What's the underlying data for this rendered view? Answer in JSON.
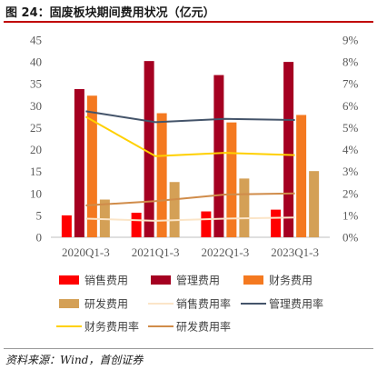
{
  "title": "图 24：固废板块期间费用状况（亿元）",
  "source": "资料来源：Wind，首创证券",
  "chart_data": {
    "type": "bar",
    "categories": [
      "2020Q1-3",
      "2021Q1-3",
      "2022Q1-3",
      "2023Q1-3"
    ],
    "series": [
      {
        "name": "销售费用",
        "kind": "bar",
        "axis": "left",
        "color": "#ff0000",
        "values": [
          5.0,
          5.6,
          5.9,
          6.3
        ]
      },
      {
        "name": "管理费用",
        "kind": "bar",
        "axis": "left",
        "color": "#a50021",
        "values": [
          33.8,
          40.2,
          37.0,
          40.0
        ]
      },
      {
        "name": "财务费用",
        "kind": "bar",
        "axis": "left",
        "color": "#f47920",
        "values": [
          32.3,
          28.3,
          26.2,
          27.9
        ]
      },
      {
        "name": "研发费用",
        "kind": "bar",
        "axis": "left",
        "color": "#d4a056",
        "values": [
          8.6,
          12.6,
          13.4,
          15.1
        ]
      },
      {
        "name": "销售费用率",
        "kind": "line",
        "axis": "right",
        "color": "#fbe5c8",
        "values": [
          0.85,
          0.75,
          0.85,
          0.9
        ]
      },
      {
        "name": "管理费用率",
        "kind": "line",
        "axis": "right",
        "color": "#44546a",
        "values": [
          5.75,
          5.25,
          5.4,
          5.35
        ]
      },
      {
        "name": "财务费用率",
        "kind": "line",
        "axis": "right",
        "color": "#ffd000",
        "values": [
          5.5,
          3.7,
          3.85,
          3.75
        ]
      },
      {
        "name": "研发费用率",
        "kind": "line",
        "axis": "right",
        "color": "#d08c4a",
        "values": [
          1.45,
          1.65,
          1.95,
          2.0
        ]
      }
    ],
    "y_left": {
      "ylim": [
        0,
        45
      ],
      "ticks": [
        "0",
        "5",
        "10",
        "15",
        "20",
        "25",
        "30",
        "35",
        "40",
        "45"
      ]
    },
    "y_right": {
      "ylim": [
        0,
        9
      ],
      "ticks": [
        "0%",
        "1%",
        "2%",
        "3%",
        "4%",
        "5%",
        "6%",
        "7%",
        "8%",
        "9%"
      ]
    },
    "grid": false,
    "legend_position": "bottom"
  }
}
